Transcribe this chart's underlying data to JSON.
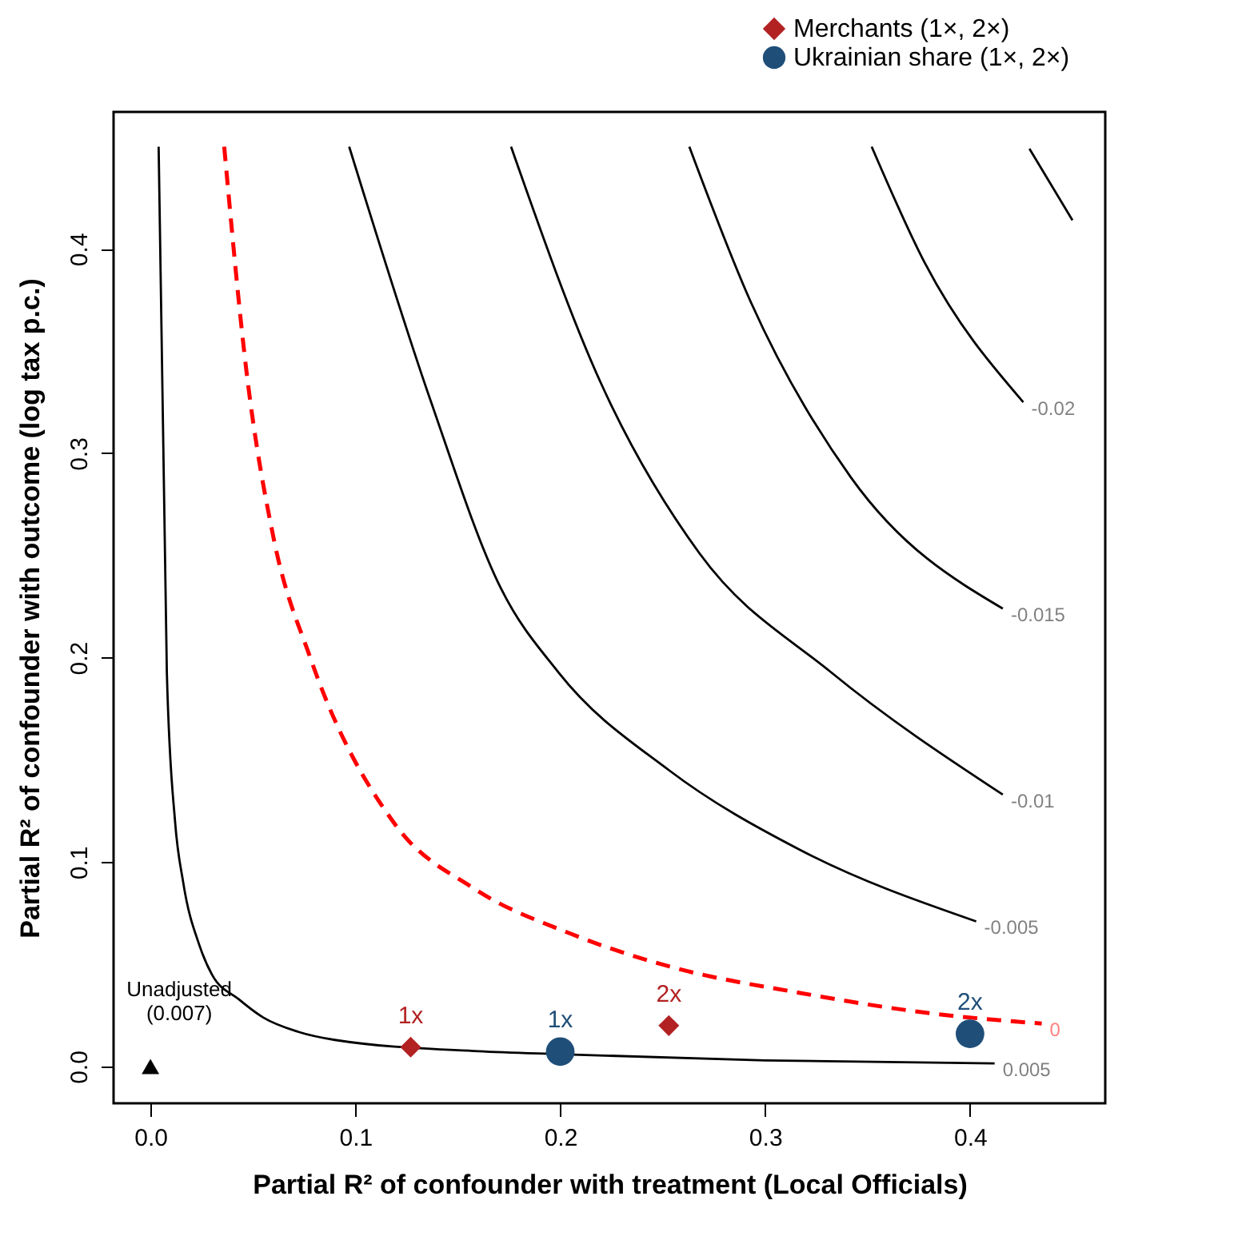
{
  "chart_data": {
    "type": "line",
    "xlabel": "Partial R² of confounder with treatment (Local Officials)",
    "ylabel": "Partial R² of confounder with outcome (log tax p.c.)",
    "xlim": [
      -0.018,
      0.466
    ],
    "ylim": [
      -0.018,
      0.467
    ],
    "xticks": [
      {
        "value": 0,
        "label": "0.0"
      },
      0.1,
      0.2,
      0.3,
      0.4
    ],
    "yticks": [
      {
        "value": 0,
        "label": "0.0"
      },
      0.1,
      0.2,
      0.3,
      0.4
    ],
    "legend": "top right",
    "annotations": [
      {
        "text": "Unadjusted\n(0.007)",
        "x": 0,
        "y": 0
      },
      {
        "text": "1x",
        "x": 0.127,
        "y": 0.0095
      },
      {
        "text": "2x",
        "x": 0.253,
        "y": 0.02
      },
      {
        "text": "1x",
        "x": 0.2,
        "y": 0.0073
      },
      {
        "text": "2x",
        "x": 0.4,
        "y": 0.016
      }
    ],
    "series": [
      {
        "name": "0.005",
        "color": "#000000",
        "line_style": "solid",
        "x": [
          0.004,
          0.008,
          0.012,
          0.016,
          0.024,
          0.03,
          0.043,
          0.055,
          0.072,
          0.09,
          0.16,
          0.2,
          0.3,
          0.412
        ],
        "values": [
          0.45,
          0.193,
          0.12,
          0.09,
          0.059,
          0.045,
          0.033,
          0.024,
          0.017,
          0.013,
          0.0075,
          0.006,
          0.003,
          0.0015
        ]
      },
      {
        "name": "0",
        "color": "#ff0000",
        "line_style": "dashed",
        "x": [
          0.036,
          0.047,
          0.06,
          0.078,
          0.119,
          0.158,
          0.205,
          0.253,
          0.317,
          0.381,
          0.435
        ],
        "values": [
          0.45,
          0.339,
          0.259,
          0.2,
          0.119,
          0.087,
          0.065,
          0.049,
          0.036,
          0.026,
          0.021
        ]
      },
      {
        "name": "-0.005",
        "color": "#000000",
        "line_style": "solid",
        "x": [
          0.097,
          0.137,
          0.171,
          0.199,
          0.253,
          0.317,
          0.403
        ],
        "values": [
          0.45,
          0.325,
          0.234,
          0.193,
          0.145,
          0.106,
          0.071
        ]
      },
      {
        "name": "-0.01",
        "color": "#000000",
        "line_style": "solid",
        "x": [
          0.176,
          0.22,
          0.268,
          0.332,
          0.416
        ],
        "values": [
          0.45,
          0.334,
          0.251,
          0.193,
          0.133
        ]
      },
      {
        "name": "-0.015",
        "color": "#000000",
        "line_style": "solid",
        "x": [
          0.263,
          0.293,
          0.342,
          0.416
        ],
        "values": [
          0.45,
          0.374,
          0.288,
          0.224
        ]
      },
      {
        "name": "-0.02",
        "color": "#000000",
        "line_style": "solid",
        "x": [
          0.352,
          0.378,
          0.426
        ],
        "values": [
          0.45,
          0.393,
          0.325
        ]
      },
      {
        "color": "#000000",
        "line_style": "solid",
        "x": [
          0.429,
          0.45
        ],
        "values": [
          0.449,
          0.414
        ]
      },
      {
        "type": "scatter",
        "color": "#000000",
        "marker": "triangle",
        "x": [
          0
        ],
        "values": [
          0
        ]
      },
      {
        "name": "Merchants (1×, 2×)",
        "type": "scatter",
        "color": "#b22222",
        "marker": "diamond",
        "x": [
          0.127,
          0.253
        ],
        "values": [
          0.0095,
          0.02
        ]
      },
      {
        "name": "Ukrainian share (1×, 2×)",
        "type": "scatter",
        "color": "#1f4e79",
        "marker": "circle",
        "x": [
          0.2,
          0.4
        ],
        "values": [
          0.0073,
          0.016
        ]
      }
    ]
  }
}
